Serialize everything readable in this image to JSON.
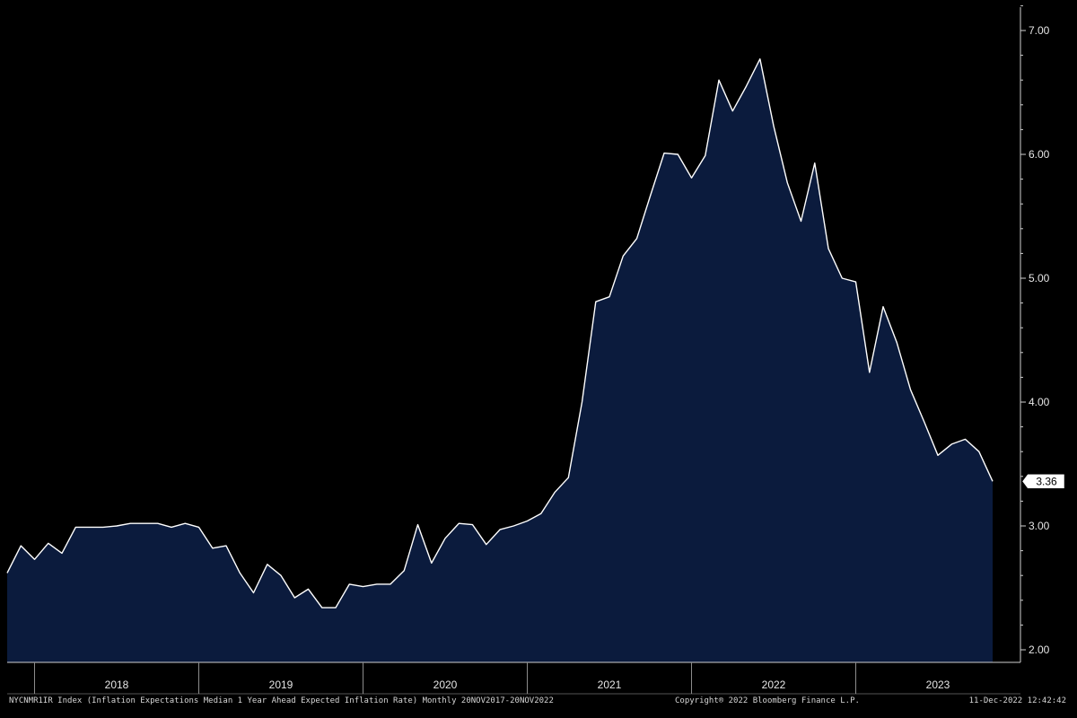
{
  "chart_data": {
    "type": "area",
    "y_axis_position": "right",
    "ylim": [
      2.0,
      7.2
    ],
    "yticks": [
      "7.00",
      "6.00",
      "5.00",
      "4.00",
      "3.00",
      "2.00"
    ],
    "ytick_values": [
      7,
      6,
      5,
      4,
      3,
      2
    ],
    "x_period_labels": [
      "2018",
      "2019",
      "2020",
      "2021",
      "2022",
      "2023"
    ],
    "x_start": "2017-11",
    "x_end": "2023-11",
    "last_value_label": "3.36",
    "colors": {
      "fill": "#0b1b3d",
      "line": "#ffffff",
      "background": "#000000",
      "axis": "#cfcfcf"
    },
    "series": [
      {
        "values": [
          2.62,
          2.84,
          2.73,
          2.86,
          2.78,
          2.99,
          2.99,
          2.99,
          3.0,
          3.02,
          3.02,
          3.02,
          2.99,
          3.02,
          2.99,
          2.82,
          2.84,
          2.62,
          2.46,
          2.69,
          2.6,
          2.42,
          2.49,
          2.34,
          2.34,
          2.53,
          2.51,
          2.53,
          2.53,
          2.64,
          3.01,
          2.7,
          2.9,
          3.02,
          3.01,
          2.85,
          2.97,
          3.0,
          3.04,
          3.1,
          3.27,
          3.39,
          4.0,
          4.81,
          4.85,
          5.18,
          5.32,
          5.67,
          6.01,
          6.0,
          5.81,
          5.99,
          6.6,
          6.35,
          6.55,
          6.77,
          6.23,
          5.77,
          5.46,
          5.93,
          5.24,
          5.0,
          4.97,
          4.24,
          4.77,
          4.48,
          4.1,
          3.84,
          3.57,
          3.66,
          3.7,
          3.6,
          3.36
        ]
      }
    ]
  },
  "footer": {
    "left": "NYCNMR1IR Index (Inflation Expectations Median 1 Year Ahead Expected Inflation Rate) Monthly 20NOV2017-20NOV2022",
    "middle": "Copyright® 2022 Bloomberg Finance L.P.",
    "right": "11-Dec-2022 12:42:42"
  }
}
